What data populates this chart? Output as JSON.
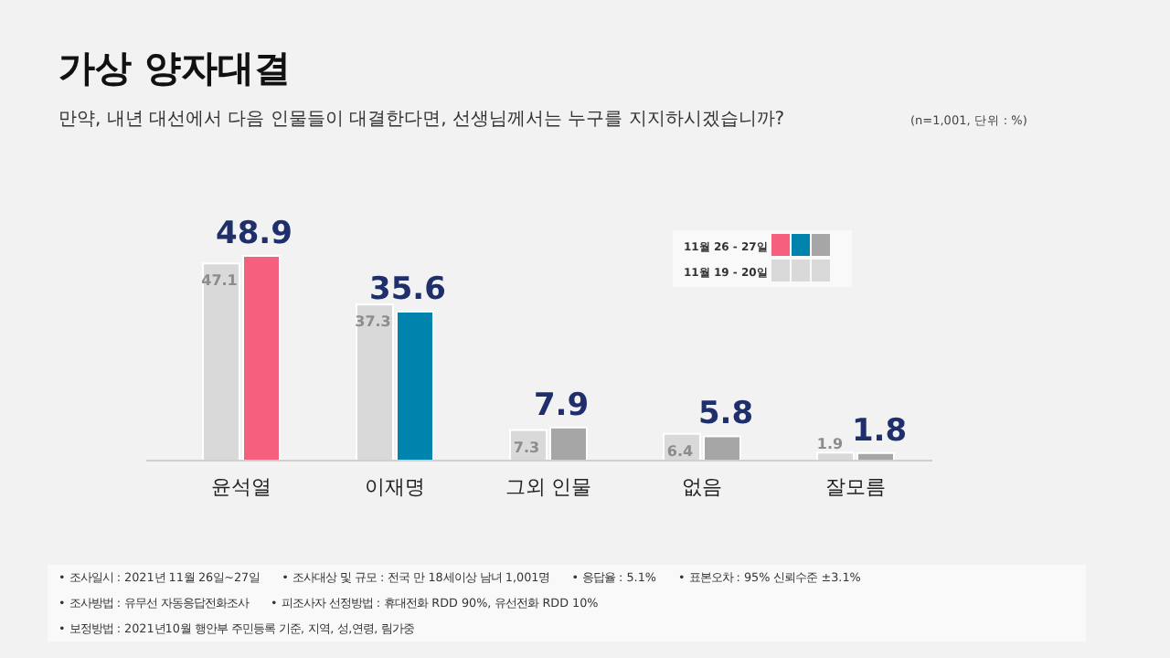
{
  "chart_data": {
    "type": "bar",
    "title": "가상 양자대결",
    "subtitle": "만약, 내년 대선에서 다음 인물들이 대결한다면, 선생님께서는 누구를 지지하시겠습니까?",
    "categories": [
      "윤석열",
      "이재명",
      "그외 인물",
      "없음",
      "잘모름"
    ],
    "series": [
      {
        "name": "11월 19 - 20일",
        "color": "#d9d9d9",
        "values": [
          47.1,
          37.3,
          7.3,
          6.4,
          1.9
        ]
      },
      {
        "name": "11월 26 - 27일",
        "colors": [
          "#f5607e",
          "#0084ad",
          "#a6a6a6",
          "#a6a6a6",
          "#a6a6a6"
        ],
        "values": [
          48.9,
          35.6,
          7.9,
          5.8,
          1.8
        ]
      }
    ],
    "data_labels": true,
    "legend": "top right",
    "annotations": [
      "(n=1,001, 단위 : %)",
      "• 조사일시 : 2021년 11월 26일~27일　　• 조사대상 및 규모 : 전국 만 18세이상  남녀  1,001명　　• 응답율 :  5.1%　　• 표본오차 : 95% 신뢰수준 ±3.1%",
      "• 조사방법 : 유무선 자동응답전화조사　　• 피조사자 선정방법 : 휴대전화 RDD  90%, 유선전화 RDD  10%",
      "• 보정방법 : 2021년10월  행안부 주민등록 기준,  지역, 성,연령, 림가중"
    ]
  }
}
